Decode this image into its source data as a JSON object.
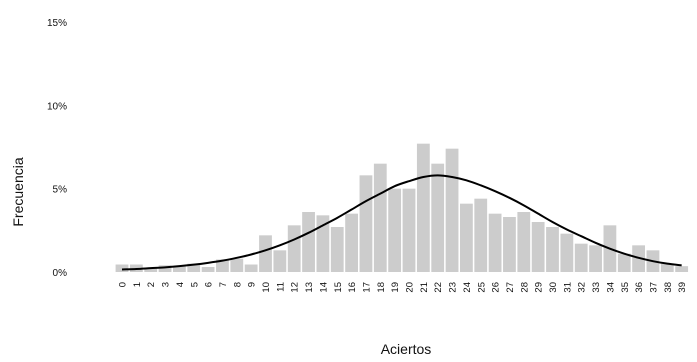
{
  "chart_data": {
    "type": "bar",
    "xlabel": "Aciertos",
    "ylabel": "Frecuencia",
    "ylim": [
      0,
      15
    ],
    "y_ticks": [
      {
        "value": 0,
        "label": "0%"
      },
      {
        "value": 5,
        "label": "5%"
      },
      {
        "value": 10,
        "label": "10%"
      },
      {
        "value": 15,
        "label": "15%"
      }
    ],
    "grid": false,
    "legend": "none",
    "categories": [
      "0",
      "1",
      "2",
      "3",
      "4",
      "5",
      "6",
      "7",
      "8",
      "9",
      "10",
      "11",
      "12",
      "13",
      "14",
      "15",
      "16",
      "17",
      "18",
      "19",
      "20",
      "21",
      "22",
      "23",
      "24",
      "25",
      "26",
      "27",
      "28",
      "29",
      "30",
      "31",
      "32",
      "33",
      "34",
      "35",
      "36",
      "37",
      "38",
      "39"
    ],
    "series": [
      {
        "kind": "bar",
        "color": "#cccccc",
        "values": [
          0.45,
          0.45,
          0.2,
          0.4,
          0.35,
          0.5,
          0.3,
          0.75,
          0.8,
          0.45,
          2.2,
          1.3,
          2.8,
          3.6,
          3.4,
          2.7,
          3.5,
          5.8,
          6.5,
          5.0,
          5.0,
          7.7,
          6.5,
          7.4,
          4.1,
          4.4,
          3.5,
          3.3,
          3.6,
          3.0,
          2.7,
          2.3,
          1.7,
          1.6,
          2.8,
          1.1,
          1.6,
          1.3,
          0.5,
          0.35
        ]
      },
      {
        "kind": "line",
        "color": "#000000",
        "values": [
          0.15,
          0.18,
          0.23,
          0.28,
          0.35,
          0.44,
          0.55,
          0.68,
          0.85,
          1.05,
          1.3,
          1.6,
          1.95,
          2.35,
          2.8,
          3.25,
          3.75,
          4.25,
          4.7,
          5.15,
          5.45,
          5.7,
          5.8,
          5.7,
          5.5,
          5.2,
          4.85,
          4.45,
          4.0,
          3.5,
          3.0,
          2.55,
          2.15,
          1.75,
          1.4,
          1.1,
          0.85,
          0.65,
          0.5,
          0.4
        ]
      }
    ]
  }
}
